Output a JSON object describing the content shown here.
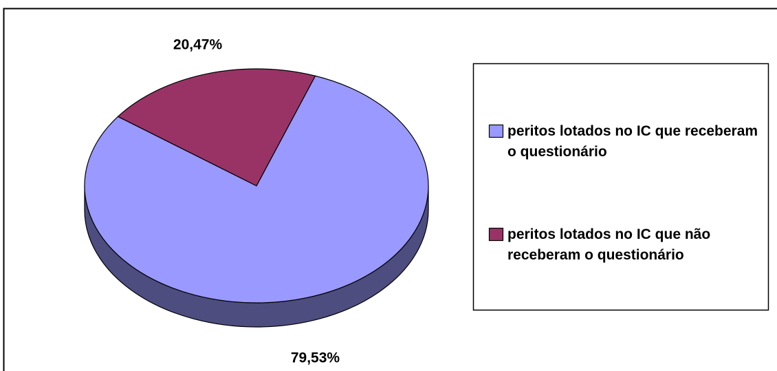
{
  "chart_data": {
    "type": "pie",
    "three_d": true,
    "categories": [
      "peritos lotados no IC que receberam o questionário",
      "peritos lotados no IC que não receberam o questionário"
    ],
    "values": [
      79.53,
      20.47
    ],
    "value_labels": [
      "79,53%",
      "20,47%"
    ],
    "colors": [
      "#9999ff",
      "#993366"
    ],
    "legend": "right"
  }
}
